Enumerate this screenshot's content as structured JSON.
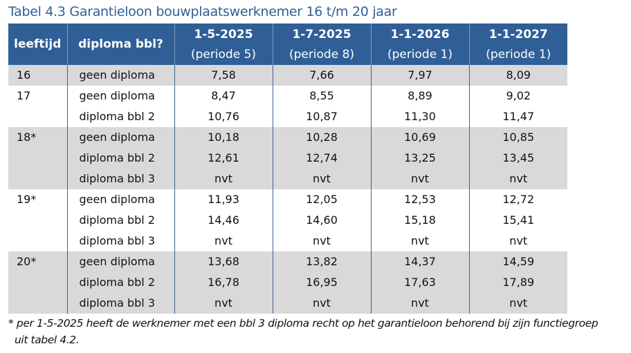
{
  "title": "Tabel 4.3  Garantieloon bouwplaatswerknemer 16 t/m 20 jaar",
  "table": {
    "header": {
      "age": "leeftijd",
      "diploma": "diploma bbl?",
      "periods": [
        {
          "date": "1-5-2025",
          "period": "(periode 5)"
        },
        {
          "date": "1-7-2025",
          "period": "(periode 8)"
        },
        {
          "date": "1-1-2026",
          "period": "(periode 1)"
        },
        {
          "date": "1-1-2027",
          "period": "(periode 1)"
        }
      ]
    },
    "rows": [
      {
        "age": "16",
        "diploma": "geen diploma",
        "values": [
          "7,58",
          "7,66",
          "7,97",
          "8,09"
        ]
      },
      {
        "age": "17",
        "diploma": "geen diploma",
        "values": [
          "8,47",
          "8,55",
          "8,89",
          "9,02"
        ]
      },
      {
        "age": "",
        "diploma": "diploma bbl 2",
        "values": [
          "10,76",
          "10,87",
          "11,30",
          "11,47"
        ]
      },
      {
        "age": "18*",
        "diploma": "geen diploma",
        "values": [
          "10,18",
          "10,28",
          "10,69",
          "10,85"
        ]
      },
      {
        "age": "",
        "diploma": "diploma bbl 2",
        "values": [
          "12,61",
          "12,74",
          "13,25",
          "13,45"
        ]
      },
      {
        "age": "",
        "diploma": "diploma bbl 3",
        "values": [
          "nvt",
          "nvt",
          "nvt",
          "nvt"
        ]
      },
      {
        "age": "19*",
        "diploma": "geen diploma",
        "values": [
          "11,93",
          "12,05",
          "12,53",
          "12,72"
        ]
      },
      {
        "age": "",
        "diploma": "diploma bbl 2",
        "values": [
          "14,46",
          "14,60",
          "15,18",
          "15,41"
        ]
      },
      {
        "age": "",
        "diploma": "diploma bbl 3",
        "values": [
          "nvt",
          "nvt",
          "nvt",
          "nvt"
        ]
      },
      {
        "age": "20*",
        "diploma": "geen diploma",
        "values": [
          "13,68",
          "13,82",
          "14,37",
          "14,59"
        ]
      },
      {
        "age": "",
        "diploma": "diploma bbl 2",
        "values": [
          "16,78",
          "16,95",
          "17,63",
          "17,89"
        ]
      },
      {
        "age": "",
        "diploma": "diploma bbl 3",
        "values": [
          "nvt",
          "nvt",
          "nvt",
          "nvt"
        ]
      }
    ]
  },
  "footnote": {
    "line1": "* per 1-5-2025 heeft de werknemer met een bbl 3 diploma recht op het garantieloon behorend bij zijn functiegroep",
    "line2": "uit tabel 4.2."
  },
  "colors": {
    "header_bg": "#2f5f96",
    "title": "#2f5f96",
    "band_gray": "#d9d9d9"
  }
}
